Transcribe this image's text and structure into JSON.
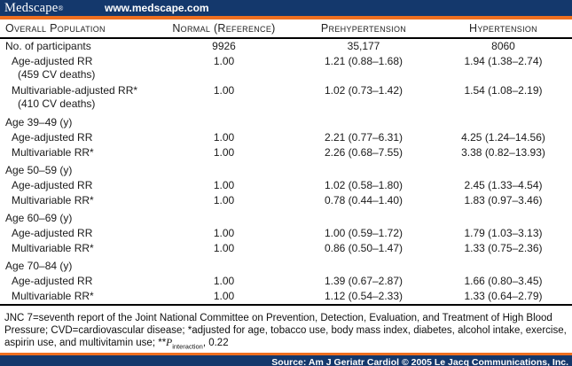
{
  "colors": {
    "navy": "#14386C",
    "orange": "#EF6F1F",
    "table_line": "#000000"
  },
  "top_bar": {
    "logo_text": "Medscape",
    "logo_reg": "®",
    "url": "www.medscape.com"
  },
  "table": {
    "headers": [
      "Overall Population",
      "Normal (Reference)",
      "Prehypertension",
      "Hypertension"
    ],
    "rows": [
      {
        "label": "No. of participants",
        "indent": 0,
        "values": [
          "9926",
          "35,177",
          "8060"
        ]
      },
      {
        "label": "Age-adjusted RR",
        "sub": "(459 CV deaths)",
        "indent": 1,
        "values": [
          "1.00",
          "1.21 (0.88–1.68)",
          "1.94 (1.38–2.74)"
        ]
      },
      {
        "label": "Multivariable-adjusted RR*",
        "sub": "(410 CV deaths)",
        "indent": 1,
        "values": [
          "1.00",
          "1.02 (0.73–1.42)",
          "1.54 (1.08–2.19)"
        ]
      },
      {
        "label": "Age 39–49 (y)",
        "indent": 0,
        "section": true,
        "values": [
          "",
          "",
          ""
        ]
      },
      {
        "label": "Age-adjusted RR",
        "indent": 1,
        "values": [
          "1.00",
          "2.21 (0.77–6.31)",
          "4.25 (1.24–14.56)"
        ]
      },
      {
        "label": "Multivariable RR*",
        "indent": 1,
        "values": [
          "1.00",
          "2.26 (0.68–7.55)",
          "3.38 (0.82–13.93)"
        ]
      },
      {
        "label": "Age 50–59 (y)",
        "indent": 0,
        "section": true,
        "values": [
          "",
          "",
          ""
        ]
      },
      {
        "label": "Age-adjusted RR",
        "indent": 1,
        "values": [
          "1.00",
          "1.02 (0.58–1.80)",
          "2.45 (1.33–4.54)"
        ]
      },
      {
        "label": "Multivariable RR*",
        "indent": 1,
        "values": [
          "1.00",
          "0.78 (0.44–1.40)",
          "1.83 (0.97–3.46)"
        ]
      },
      {
        "label": "Age 60–69 (y)",
        "indent": 0,
        "section": true,
        "values": [
          "",
          "",
          ""
        ]
      },
      {
        "label": "Age-adjusted RR",
        "indent": 1,
        "values": [
          "1.00",
          "1.00 (0.59–1.72)",
          "1.79 (1.03–3.13)"
        ]
      },
      {
        "label": "Multivariable RR*",
        "indent": 1,
        "values": [
          "1.00",
          "0.86 (0.50–1.47)",
          "1.33 (0.75–2.36)"
        ]
      },
      {
        "label": "Age 70–84 (y)",
        "indent": 0,
        "section": true,
        "values": [
          "",
          "",
          ""
        ]
      },
      {
        "label": "Age-adjusted RR",
        "indent": 1,
        "values": [
          "1.00",
          "1.39 (0.67–2.87)",
          "1.66 (0.80–3.45)"
        ]
      },
      {
        "label": "Multivariable RR*",
        "indent": 1,
        "values": [
          "1.00",
          "1.12 (0.54–2.33)",
          "1.33 (0.64–2.79)"
        ]
      }
    ]
  },
  "footnote": {
    "text_before": "JNC 7=seventh report of the Joint National Committee on Prevention, Detection, Evaluation, and Treatment of High Blood Pressure; CVD=cardiovascular disease; *adjusted for age, tobacco use, body mass index, diabetes, alcohol intake, exercise, aspirin use, and multivitamin use; **",
    "p_symbol": "P",
    "p_subscript": "interaction",
    "text_after": ", 0.22"
  },
  "bottom_bar": {
    "source_text": "Source: Am J Geriatr Cardiol © 2005 Le Jacq Communications, Inc."
  }
}
